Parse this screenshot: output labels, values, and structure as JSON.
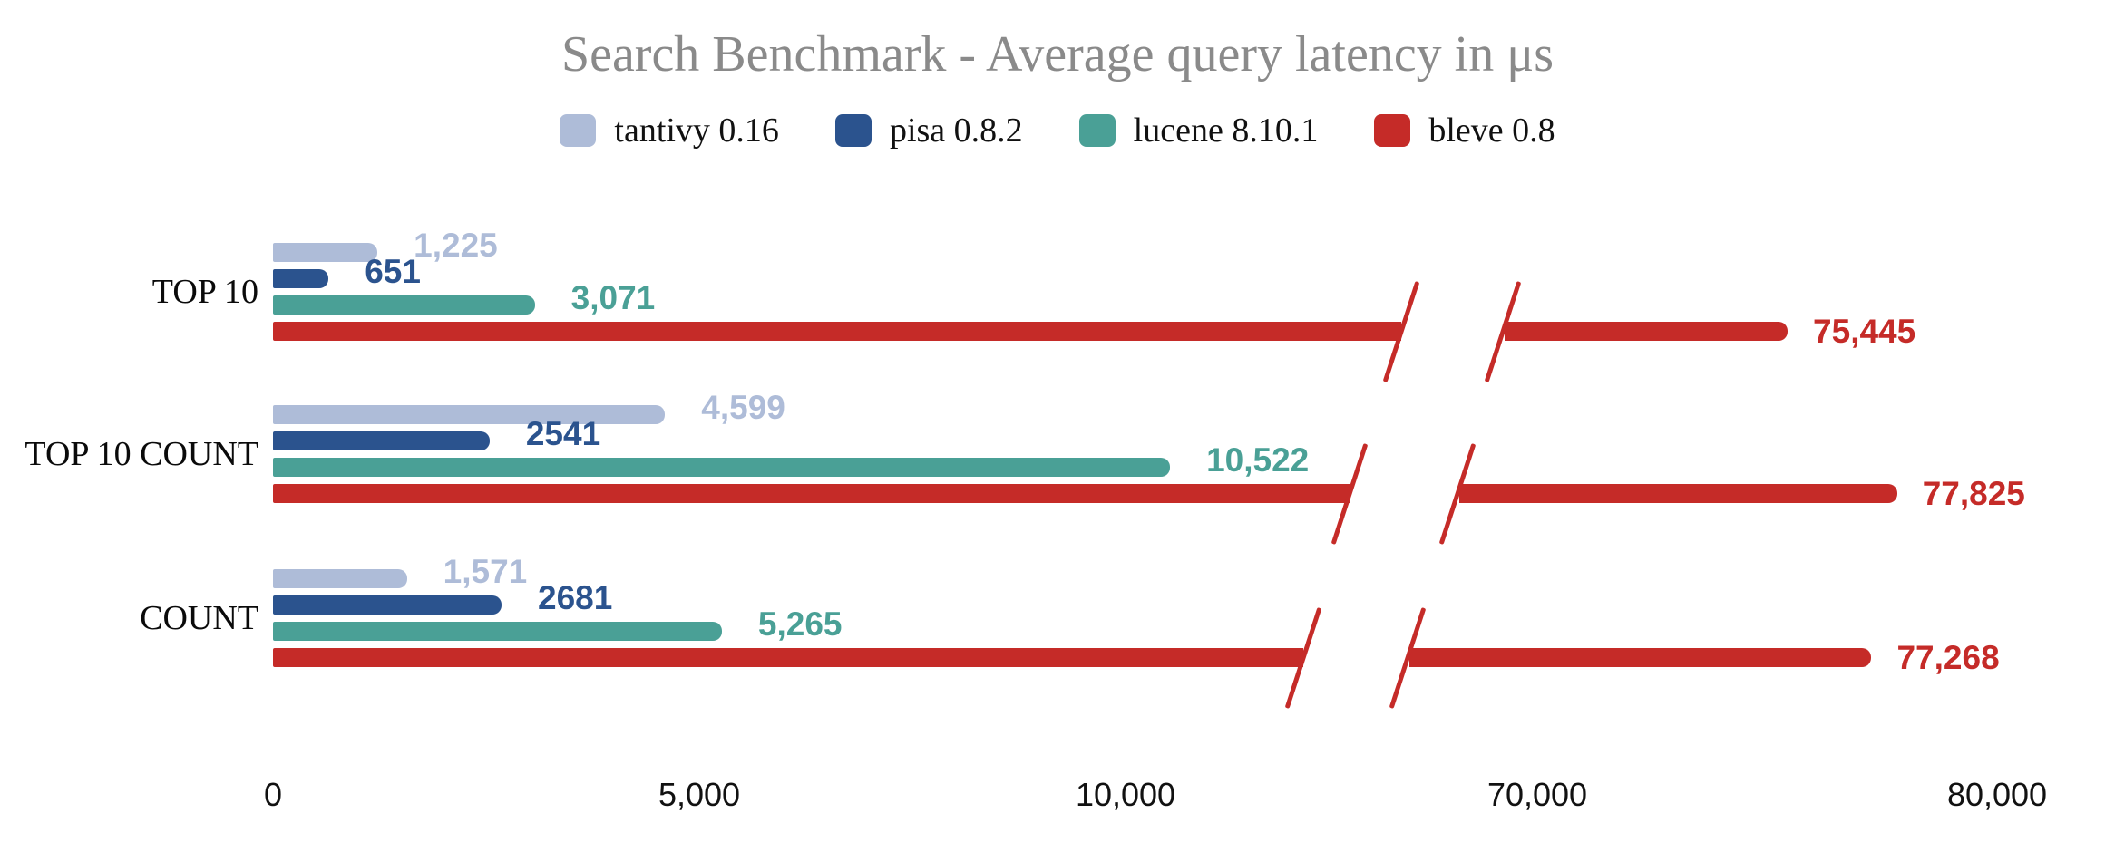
{
  "title": "Search Benchmark - Average query latency in μs",
  "legend": [
    {
      "id": "tantivy",
      "label": "tantivy 0.16",
      "color": "#aebcd8"
    },
    {
      "id": "pisa",
      "label": "pisa 0.8.2",
      "color": "#2b538e"
    },
    {
      "id": "lucene",
      "label": "lucene 8.10.1",
      "color": "#4aa096"
    },
    {
      "id": "bleve",
      "label": "bleve 0.8",
      "color": "#c52b28"
    }
  ],
  "chart_data": {
    "type": "bar",
    "orientation": "horizontal",
    "title": "Search Benchmark - Average query latency in μs",
    "value_unit": "μs",
    "categories": [
      "TOP 10",
      "TOP 10 COUNT",
      "COUNT"
    ],
    "series": [
      {
        "name": "tantivy 0.16",
        "color": "#aebcd8",
        "values": [
          1225,
          4599,
          1571
        ],
        "labels": [
          "1,225",
          "4,599",
          "1,571"
        ]
      },
      {
        "name": "pisa 0.8.2",
        "color": "#2b538e",
        "values": [
          651,
          2541,
          2681
        ],
        "labels": [
          "651",
          "2541",
          "2681"
        ]
      },
      {
        "name": "lucene 8.10.1",
        "color": "#4aa096",
        "values": [
          3071,
          10522,
          5265
        ],
        "labels": [
          "3,071",
          "10,522",
          "5,265"
        ]
      },
      {
        "name": "bleve 0.8",
        "color": "#c52b28",
        "values": [
          75445,
          77825,
          77268
        ],
        "labels": [
          "75,445",
          "77,825",
          "77,268"
        ]
      }
    ],
    "x_axis": {
      "ticks": [
        {
          "value": 0,
          "label": "0"
        },
        {
          "value": 5000,
          "label": "5,000"
        },
        {
          "value": 10000,
          "label": "10,000"
        },
        {
          "value": 70000,
          "label": "70,000"
        },
        {
          "value": 80000,
          "label": "80,000"
        }
      ],
      "axis_break": {
        "between": [
          10000,
          70000
        ]
      },
      "gridlines": false
    },
    "legend_position": "top",
    "background": "#ffffff"
  }
}
